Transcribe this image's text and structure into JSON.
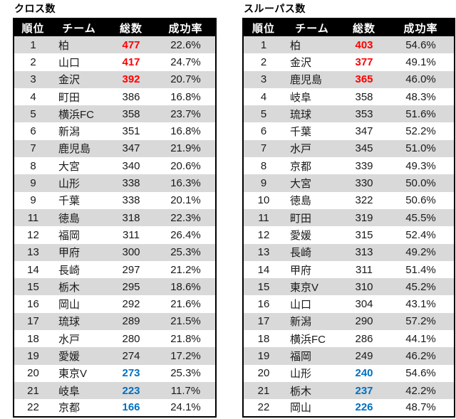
{
  "colors": {
    "header_bg": "#000000",
    "header_text": "#FFFFFF",
    "stripe_gray": "#D9D9D9",
    "top_value_red": "#FF0000",
    "bottom_value_blue": "#0070C0"
  },
  "tables": [
    {
      "title": "クロス数",
      "columns": [
        "順位",
        "チーム",
        "総数",
        "成功率"
      ],
      "rows": [
        {
          "rank": "1",
          "team": "柏",
          "total": "477",
          "rate": "22.6%",
          "hl": "red"
        },
        {
          "rank": "2",
          "team": "山口",
          "total": "417",
          "rate": "24.7%",
          "hl": "red"
        },
        {
          "rank": "3",
          "team": "金沢",
          "total": "392",
          "rate": "20.7%",
          "hl": "red"
        },
        {
          "rank": "4",
          "team": "町田",
          "total": "386",
          "rate": "16.8%",
          "hl": null
        },
        {
          "rank": "5",
          "team": "横浜FC",
          "total": "358",
          "rate": "23.7%",
          "hl": null
        },
        {
          "rank": "6",
          "team": "新潟",
          "total": "351",
          "rate": "16.8%",
          "hl": null
        },
        {
          "rank": "7",
          "team": "鹿児島",
          "total": "347",
          "rate": "21.9%",
          "hl": null
        },
        {
          "rank": "8",
          "team": "大宮",
          "total": "340",
          "rate": "20.6%",
          "hl": null
        },
        {
          "rank": "9",
          "team": "山形",
          "total": "338",
          "rate": "16.3%",
          "hl": null
        },
        {
          "rank": "9",
          "team": "千葉",
          "total": "338",
          "rate": "20.1%",
          "hl": null
        },
        {
          "rank": "11",
          "team": "徳島",
          "total": "318",
          "rate": "22.3%",
          "hl": null
        },
        {
          "rank": "12",
          "team": "福岡",
          "total": "311",
          "rate": "26.4%",
          "hl": null
        },
        {
          "rank": "13",
          "team": "甲府",
          "total": "300",
          "rate": "25.3%",
          "hl": null
        },
        {
          "rank": "14",
          "team": "長崎",
          "total": "297",
          "rate": "21.2%",
          "hl": null
        },
        {
          "rank": "15",
          "team": "栃木",
          "total": "295",
          "rate": "18.6%",
          "hl": null
        },
        {
          "rank": "16",
          "team": "岡山",
          "total": "292",
          "rate": "21.6%",
          "hl": null
        },
        {
          "rank": "17",
          "team": "琉球",
          "total": "289",
          "rate": "21.5%",
          "hl": null
        },
        {
          "rank": "18",
          "team": "水戸",
          "total": "280",
          "rate": "21.8%",
          "hl": null
        },
        {
          "rank": "19",
          "team": "愛媛",
          "total": "274",
          "rate": "17.2%",
          "hl": null
        },
        {
          "rank": "20",
          "team": "東京V",
          "total": "273",
          "rate": "25.3%",
          "hl": "blue"
        },
        {
          "rank": "21",
          "team": "岐阜",
          "total": "223",
          "rate": "11.7%",
          "hl": "blue"
        },
        {
          "rank": "22",
          "team": "京都",
          "total": "166",
          "rate": "24.1%",
          "hl": "blue"
        }
      ]
    },
    {
      "title": "スルーパス数",
      "columns": [
        "順位",
        "チーム",
        "総数",
        "成功率"
      ],
      "rows": [
        {
          "rank": "1",
          "team": "柏",
          "total": "403",
          "rate": "54.6%",
          "hl": "red"
        },
        {
          "rank": "2",
          "team": "金沢",
          "total": "377",
          "rate": "49.1%",
          "hl": "red"
        },
        {
          "rank": "3",
          "team": "鹿児島",
          "total": "365",
          "rate": "46.0%",
          "hl": "red"
        },
        {
          "rank": "4",
          "team": "岐阜",
          "total": "358",
          "rate": "48.3%",
          "hl": null
        },
        {
          "rank": "5",
          "team": "琉球",
          "total": "353",
          "rate": "51.6%",
          "hl": null
        },
        {
          "rank": "6",
          "team": "千葉",
          "total": "347",
          "rate": "52.2%",
          "hl": null
        },
        {
          "rank": "7",
          "team": "水戸",
          "total": "345",
          "rate": "51.0%",
          "hl": null
        },
        {
          "rank": "8",
          "team": "京都",
          "total": "339",
          "rate": "49.3%",
          "hl": null
        },
        {
          "rank": "9",
          "team": "大宮",
          "total": "330",
          "rate": "50.0%",
          "hl": null
        },
        {
          "rank": "10",
          "team": "徳島",
          "total": "322",
          "rate": "50.6%",
          "hl": null
        },
        {
          "rank": "11",
          "team": "町田",
          "total": "319",
          "rate": "45.5%",
          "hl": null
        },
        {
          "rank": "12",
          "team": "愛媛",
          "total": "315",
          "rate": "52.4%",
          "hl": null
        },
        {
          "rank": "13",
          "team": "長崎",
          "total": "313",
          "rate": "49.2%",
          "hl": null
        },
        {
          "rank": "14",
          "team": "甲府",
          "total": "311",
          "rate": "51.4%",
          "hl": null
        },
        {
          "rank": "15",
          "team": "東京V",
          "total": "310",
          "rate": "45.2%",
          "hl": null
        },
        {
          "rank": "16",
          "team": "山口",
          "total": "304",
          "rate": "43.1%",
          "hl": null
        },
        {
          "rank": "17",
          "team": "新潟",
          "total": "290",
          "rate": "57.2%",
          "hl": null
        },
        {
          "rank": "18",
          "team": "横浜FC",
          "total": "286",
          "rate": "44.1%",
          "hl": null
        },
        {
          "rank": "19",
          "team": "福岡",
          "total": "249",
          "rate": "46.2%",
          "hl": null
        },
        {
          "rank": "20",
          "team": "山形",
          "total": "240",
          "rate": "54.6%",
          "hl": "blue"
        },
        {
          "rank": "21",
          "team": "栃木",
          "total": "237",
          "rate": "42.2%",
          "hl": "blue"
        },
        {
          "rank": "22",
          "team": "岡山",
          "total": "226",
          "rate": "48.7%",
          "hl": "blue"
        }
      ]
    }
  ]
}
